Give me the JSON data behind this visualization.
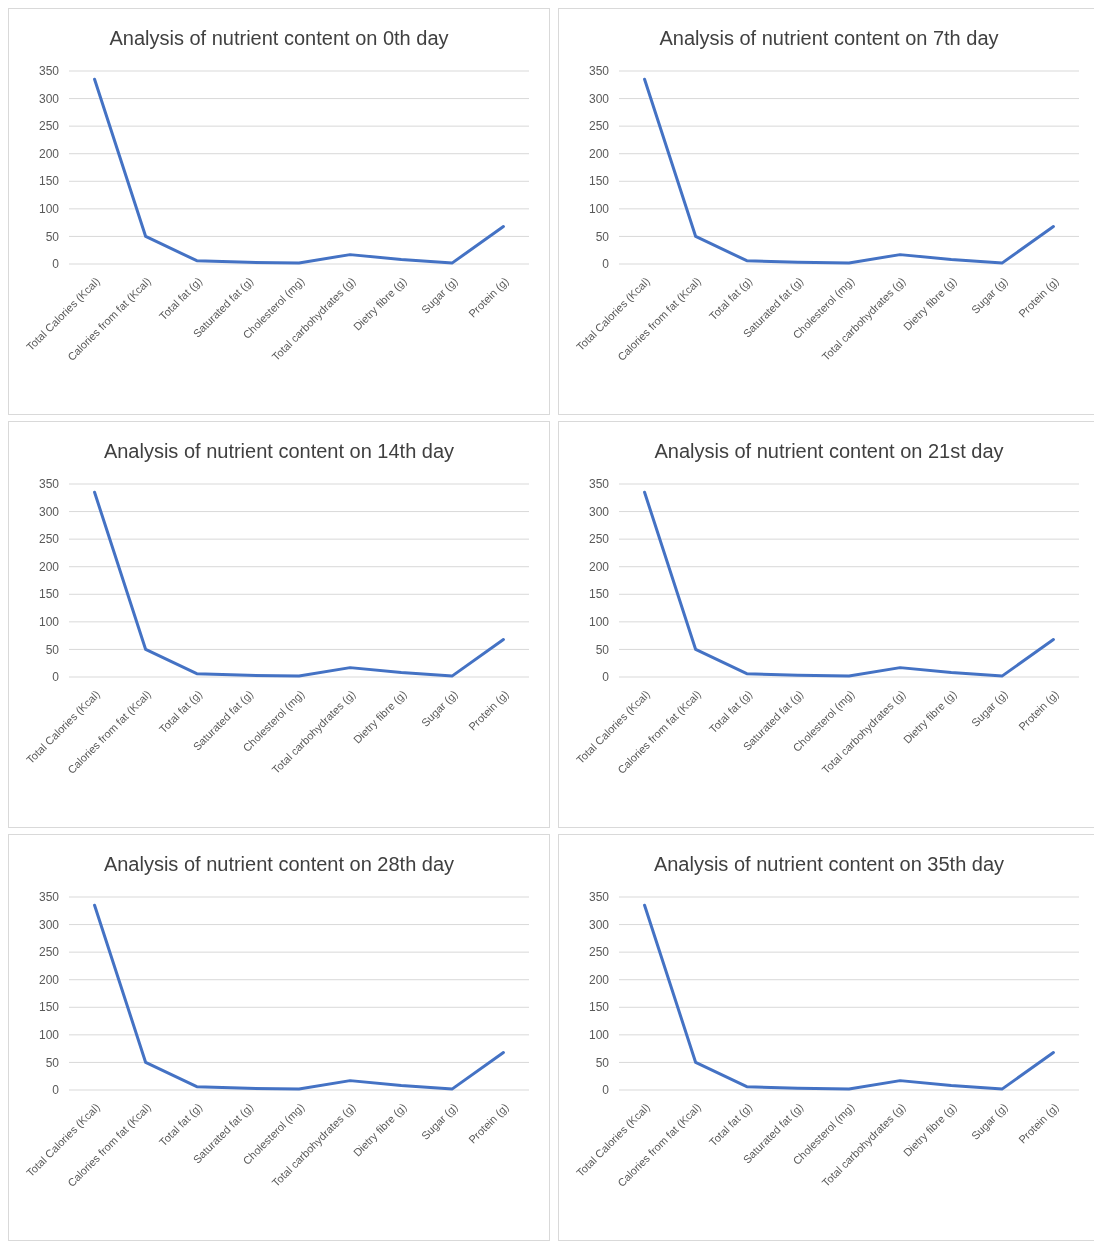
{
  "chart_data": [
    {
      "type": "line",
      "title": "Analysis of nutrient content on 0th day",
      "categories": [
        "Total Calories (Kcal)",
        "Calories from fat (Kcal)",
        "Total fat (g)",
        "Saturated fat (g)",
        "Cholesterol (mg)",
        "Total carbohydrates (g)",
        "Dietry fibre (g)",
        "Sugar (g)",
        "Protein (g)"
      ],
      "series": [
        {
          "color": "#4472c4",
          "values": [
            335,
            50,
            6,
            3,
            2,
            17,
            8,
            2,
            68
          ]
        }
      ],
      "ylim": [
        0,
        350
      ],
      "yticks": [
        0,
        50,
        100,
        150,
        200,
        250,
        300,
        350
      ],
      "grid": "y",
      "marker": "none",
      "line_style": "solid"
    },
    {
      "type": "line",
      "title": "Analysis of nutrient content on 7th day",
      "categories": [
        "Total Calories (Kcal)",
        "Calories from fat (Kcal)",
        "Total fat (g)",
        "Saturated fat (g)",
        "Cholesterol (mg)",
        "Total carbohydrates (g)",
        "Dietry fibre (g)",
        "Sugar (g)",
        "Protein (g)"
      ],
      "series": [
        {
          "color": "#4472c4",
          "values": [
            335,
            50,
            6,
            3,
            2,
            17,
            8,
            2,
            68
          ]
        }
      ],
      "ylim": [
        0,
        350
      ],
      "yticks": [
        0,
        50,
        100,
        150,
        200,
        250,
        300,
        350
      ],
      "grid": "y",
      "marker": "none",
      "line_style": "solid"
    },
    {
      "type": "line",
      "title": "Analysis of nutrient content on 14th day",
      "categories": [
        "Total Calories (Kcal)",
        "Calories from fat (Kcal)",
        "Total fat (g)",
        "Saturated fat (g)",
        "Cholesterol (mg)",
        "Total carbohydrates (g)",
        "Dietry fibre (g)",
        "Sugar (g)",
        "Protein (g)"
      ],
      "series": [
        {
          "color": "#4472c4",
          "values": [
            335,
            50,
            6,
            3,
            2,
            17,
            8,
            2,
            68
          ]
        }
      ],
      "ylim": [
        0,
        350
      ],
      "yticks": [
        0,
        50,
        100,
        150,
        200,
        250,
        300,
        350
      ],
      "grid": "y",
      "marker": "none",
      "line_style": "solid"
    },
    {
      "type": "line",
      "title": "Analysis of nutrient content on 21st day",
      "categories": [
        "Total Calories (Kcal)",
        "Calories from fat (Kcal)",
        "Total fat (g)",
        "Saturated fat (g)",
        "Cholesterol (mg)",
        "Total carbohydrates (g)",
        "Dietry fibre (g)",
        "Sugar (g)",
        "Protein (g)"
      ],
      "series": [
        {
          "color": "#4472c4",
          "values": [
            335,
            50,
            6,
            3,
            2,
            17,
            8,
            2,
            68
          ]
        }
      ],
      "ylim": [
        0,
        350
      ],
      "yticks": [
        0,
        50,
        100,
        150,
        200,
        250,
        300,
        350
      ],
      "grid": "y",
      "marker": "none",
      "line_style": "solid"
    },
    {
      "type": "line",
      "title": "Analysis of nutrient content on 28th day",
      "categories": [
        "Total Calories (Kcal)",
        "Calories from fat (Kcal)",
        "Total fat (g)",
        "Saturated fat (g)",
        "Cholesterol (mg)",
        "Total carbohydrates (g)",
        "Dietry fibre (g)",
        "Sugar (g)",
        "Protein (g)"
      ],
      "series": [
        {
          "color": "#4472c4",
          "values": [
            335,
            50,
            6,
            3,
            2,
            17,
            8,
            2,
            68
          ]
        }
      ],
      "ylim": [
        0,
        350
      ],
      "yticks": [
        0,
        50,
        100,
        150,
        200,
        250,
        300,
        350
      ],
      "grid": "y",
      "marker": "none",
      "line_style": "solid"
    },
    {
      "type": "line",
      "title": "Analysis of nutrient content on 35th day",
      "categories": [
        "Total Calories (Kcal)",
        "Calories from fat (Kcal)",
        "Total fat (g)",
        "Saturated fat (g)",
        "Cholesterol (mg)",
        "Total carbohydrates (g)",
        "Dietry fibre (g)",
        "Sugar (g)",
        "Protein (g)"
      ],
      "series": [
        {
          "color": "#4472c4",
          "values": [
            335,
            50,
            6,
            3,
            2,
            17,
            8,
            2,
            68
          ]
        }
      ],
      "ylim": [
        0,
        350
      ],
      "yticks": [
        0,
        50,
        100,
        150,
        200,
        250,
        300,
        350
      ],
      "grid": "y",
      "marker": "none",
      "line_style": "solid"
    }
  ]
}
